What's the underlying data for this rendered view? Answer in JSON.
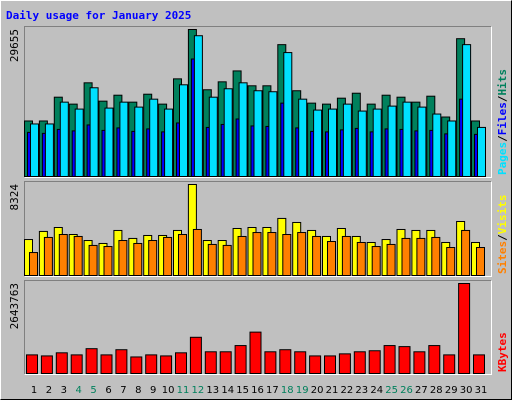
{
  "chart_data": [
    {
      "type": "bar",
      "title": "Daily usage for January 2025",
      "ylim": [
        0,
        29655
      ],
      "yticks": [
        29655
      ],
      "legend_separator": "/",
      "series": [
        {
          "name": "Hits",
          "color": "#00805c",
          "values": [
            11200,
            11200,
            16000,
            14600,
            18900,
            15200,
            16400,
            15000,
            16600,
            14600,
            19700,
            29655,
            17500,
            19100,
            21300,
            18300,
            18300,
            26600,
            17300,
            14800,
            14600,
            15800,
            16800,
            14600,
            16400,
            16000,
            15000,
            16200,
            12000,
            27800,
            11200
          ]
        },
        {
          "name": "Files",
          "color": "#0000ff",
          "values": [
            8900,
            8700,
            9500,
            9200,
            10400,
            9300,
            9800,
            9100,
            9600,
            9000,
            10800,
            23700,
            9900,
            10500,
            11600,
            10200,
            10100,
            14800,
            9800,
            9100,
            9000,
            9400,
            9700,
            9000,
            9600,
            9500,
            9200,
            9300,
            8600,
            15600,
            8500
          ]
        },
        {
          "name": "Pages",
          "color": "#00e0ff",
          "values": [
            10600,
            10600,
            15000,
            13600,
            17900,
            13800,
            15000,
            14000,
            15600,
            13600,
            18500,
            28400,
            16000,
            17700,
            18900,
            17300,
            17100,
            25000,
            15600,
            13400,
            13600,
            14600,
            13200,
            13600,
            14200,
            15000,
            14000,
            12600,
            11200,
            26600,
            9900
          ]
        }
      ]
    },
    {
      "type": "bar",
      "ylim": [
        0,
        8324
      ],
      "yticks": [
        8324
      ],
      "legend_separator": "/",
      "series": [
        {
          "name": "Visits",
          "color": "#ffff00",
          "values": [
            3290,
            4030,
            4390,
            3750,
            3200,
            2930,
            4120,
            3390,
            3660,
            3660,
            4120,
            8324,
            3200,
            3200,
            4300,
            4390,
            4390,
            5220,
            4850,
            4120,
            3570,
            4300,
            3570,
            3020,
            3290,
            4210,
            4120,
            4120,
            3020,
            4940,
            3020
          ]
        },
        {
          "name": "Sites",
          "color": "#ff8000",
          "values": [
            2100,
            3480,
            3750,
            3570,
            2750,
            2650,
            3200,
            2930,
            3200,
            3480,
            3750,
            4210,
            2840,
            2750,
            3570,
            3930,
            3930,
            3750,
            3930,
            3570,
            3110,
            3570,
            3020,
            2650,
            2840,
            3390,
            3390,
            3480,
            2560,
            4120,
            2560
          ]
        }
      ]
    },
    {
      "type": "bar",
      "ylim": [
        0,
        2643763
      ],
      "yticks": [
        2643763
      ],
      "categories": [
        "1",
        "2",
        "3",
        "4",
        "5",
        "6",
        "7",
        "8",
        "9",
        "10",
        "11",
        "12",
        "13",
        "14",
        "15",
        "16",
        "17",
        "18",
        "19",
        "20",
        "21",
        "22",
        "23",
        "24",
        "25",
        "26",
        "27",
        "28",
        "29",
        "30",
        "31"
      ],
      "category_colors": [
        "#000000",
        "#000000",
        "#000000",
        "#00805c",
        "#00805c",
        "#000000",
        "#000000",
        "#000000",
        "#000000",
        "#000000",
        "#00805c",
        "#00805c",
        "#000000",
        "#000000",
        "#000000",
        "#000000",
        "#000000",
        "#00805c",
        "#00805c",
        "#000000",
        "#000000",
        "#000000",
        "#000000",
        "#000000",
        "#00805c",
        "#00805c",
        "#000000",
        "#000000",
        "#000000",
        "#000000",
        "#000000"
      ],
      "series": [
        {
          "name": "KBytes",
          "color": "#ff0000",
          "values": [
            547000,
            516600,
            607800,
            547000,
            729300,
            547000,
            698900,
            486200,
            547000,
            516600,
            607800,
            1063600,
            638100,
            638100,
            820500,
            1215500,
            638100,
            698900,
            638100,
            516600,
            516600,
            577400,
            638100,
            668500,
            820500,
            790100,
            638100,
            820500,
            547000,
            2643763,
            547000
          ]
        }
      ]
    }
  ]
}
